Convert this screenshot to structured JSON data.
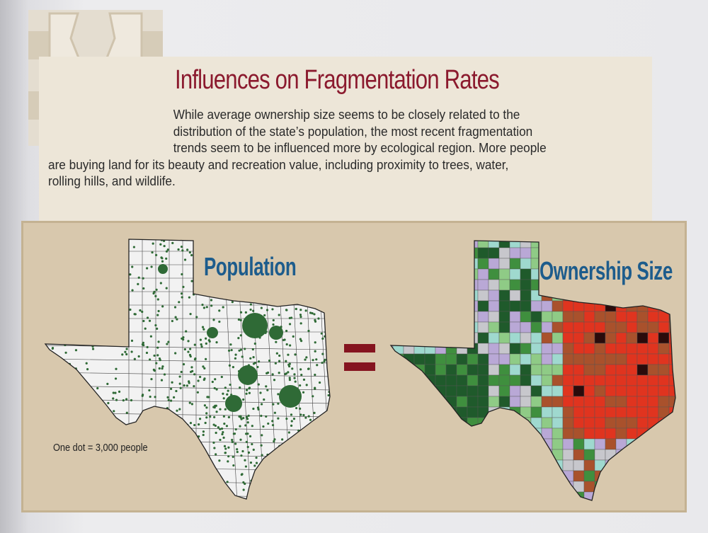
{
  "heading": "Influences on Fragmentation Rates",
  "paragraph_lines": [
    "While average ownership size seems to be closely related to the",
    "distribution of the state’s population, the most recent fragmentation",
    "trends seem to be influenced more by ecological region. More people",
    "are buying land for its beauty and recreation value, including proximity to trees, water,",
    "rolling hills, and wildlife."
  ],
  "figure": {
    "left_map": {
      "title": "Population",
      "legend": "One dot = 3,000 people",
      "dot_color": "#2f6a36",
      "fill": "#f2f2f2"
    },
    "operator": "=",
    "right_map": {
      "title": "Ownership Size",
      "palette": [
        "#1f5a2b",
        "#3f8f3e",
        "#8fcb86",
        "#9fd9cf",
        "#b9a8d6",
        "#c7c7cc",
        "#a9512c",
        "#e0341f",
        "#2a0b0b"
      ]
    },
    "colors": {
      "heading": "#8b1a2e",
      "map_titles": "#1d5c8c",
      "equals": "#85141f",
      "panel": "#d8c8ad"
    }
  }
}
